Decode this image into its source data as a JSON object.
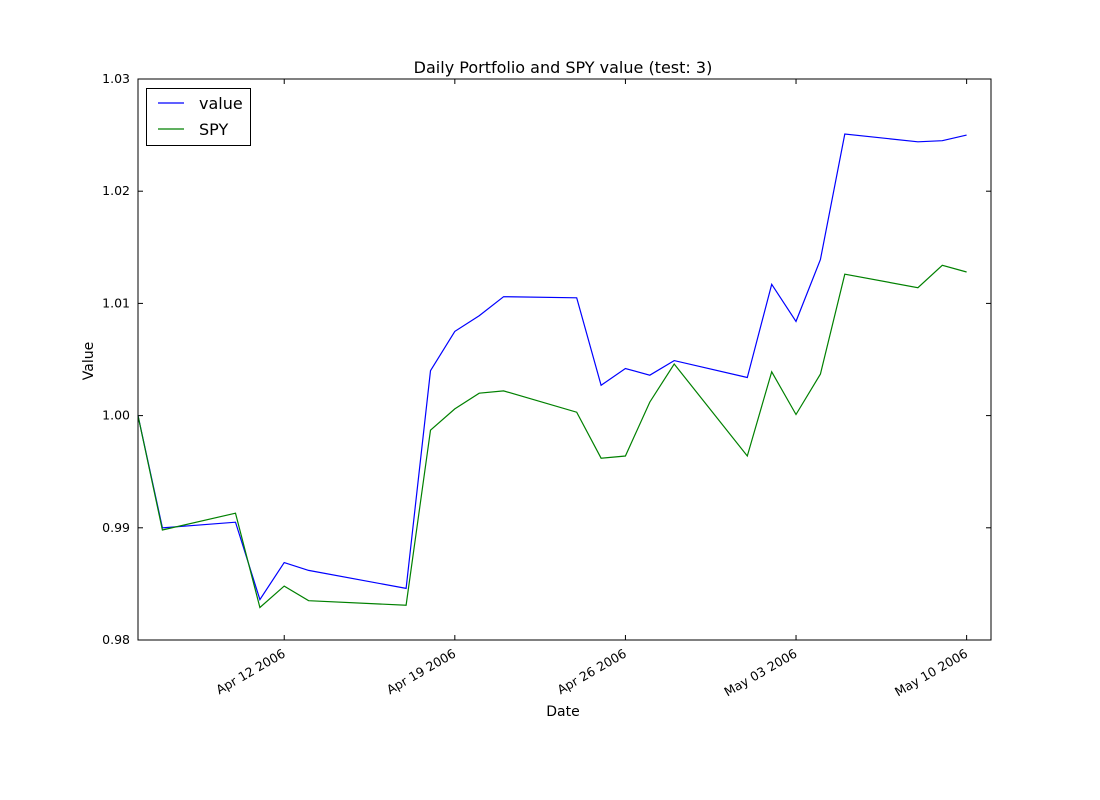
{
  "chart_data": {
    "type": "line",
    "title": "Daily Portfolio and SPY value (test: 3)",
    "xlabel": "Date",
    "ylabel": "Value",
    "xlim": [
      "2006-04-06",
      "2006-05-11"
    ],
    "ylim": [
      0.98,
      1.03
    ],
    "x_ticks": [
      {
        "date": "2006-04-12",
        "label": "Apr 12 2006"
      },
      {
        "date": "2006-04-19",
        "label": "Apr 19 2006"
      },
      {
        "date": "2006-04-26",
        "label": "Apr 26 2006"
      },
      {
        "date": "2006-05-03",
        "label": "May 03 2006"
      },
      {
        "date": "2006-05-10",
        "label": "May 10 2006"
      }
    ],
    "y_ticks": [
      {
        "value": 0.98,
        "label": "0.98"
      },
      {
        "value": 0.99,
        "label": "0.99"
      },
      {
        "value": 1.0,
        "label": "1.00"
      },
      {
        "value": 1.01,
        "label": "1.01"
      },
      {
        "value": 1.02,
        "label": "1.02"
      },
      {
        "value": 1.03,
        "label": "1.03"
      }
    ],
    "grid": false,
    "legend": "top-left",
    "x": [
      "2006-04-06",
      "2006-04-07",
      "2006-04-10",
      "2006-04-11",
      "2006-04-12",
      "2006-04-13",
      "2006-04-17",
      "2006-04-18",
      "2006-04-19",
      "2006-04-20",
      "2006-04-21",
      "2006-04-24",
      "2006-04-25",
      "2006-04-26",
      "2006-04-27",
      "2006-04-28",
      "2006-05-01",
      "2006-05-02",
      "2006-05-03",
      "2006-05-04",
      "2006-05-05",
      "2006-05-08",
      "2006-05-09",
      "2006-05-10"
    ],
    "series": [
      {
        "name": "value",
        "color": "#0000ff",
        "values": [
          1.0,
          0.99,
          0.9905,
          0.9836,
          0.9869,
          0.9862,
          0.9846,
          1.004,
          1.0075,
          1.0089,
          1.0106,
          1.0105,
          1.0027,
          1.0042,
          1.0036,
          1.0049,
          1.0034,
          1.0117,
          1.0084,
          1.0139,
          1.0251,
          1.0244,
          1.0245,
          1.025
        ]
      },
      {
        "name": "SPY",
        "color": "#008000",
        "values": [
          1.0,
          0.9898,
          0.9913,
          0.9829,
          0.9848,
          0.9835,
          0.9831,
          0.9987,
          1.0006,
          1.002,
          1.0022,
          1.0003,
          0.9962,
          0.9964,
          1.0012,
          1.0046,
          0.9964,
          1.0039,
          1.0001,
          1.0037,
          1.0126,
          1.0114,
          1.0134,
          1.0128
        ]
      }
    ]
  }
}
